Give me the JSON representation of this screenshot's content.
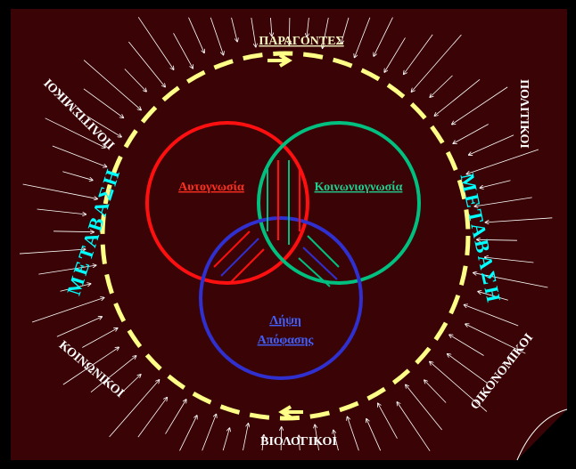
{
  "header": {
    "title": "ΠΑΡΑΓΟΝΤΕΣ"
  },
  "factors": {
    "top_left": "ΠΟΛΙΤΙΣΜΙΚΟΙ",
    "top_right": "ΠΟΛΙΤΙΚΟΙ",
    "bottom_left": "ΚΟΙΝΩΝΙΚΟΙ",
    "bottom_right": "ΟΙΚΟΝΟΜΙΚΟΙ",
    "bottom": "ΒΙΟΛΟΓΙΚΟΙ"
  },
  "transition": {
    "left": "ΜΕΤΑΒΑΣΗ",
    "right": "ΜΕΤΑΒΑΣΗ"
  },
  "circles": {
    "self": "Αυτογνωσία",
    "social": "Κοινωνιογνωσία",
    "decision": [
      "Λήψη",
      "Απόφασης"
    ]
  }
}
